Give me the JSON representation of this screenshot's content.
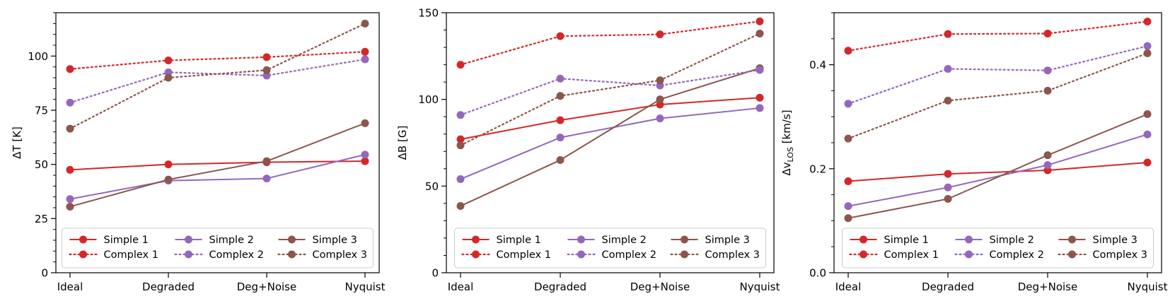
{
  "colors": {
    "simple1": "#d62728",
    "simple2": "#9467bd",
    "simple3": "#8c564b",
    "axis": "#000000",
    "background": "#ffffff"
  },
  "chart_data": [
    {
      "type": "line",
      "title": "",
      "xlabel": "",
      "ylabel": "ΔT [K]",
      "categories": [
        "Ideal",
        "Degraded",
        "Deg+Noise",
        "Nyquist"
      ],
      "ylim": [
        0,
        120
      ],
      "yticks": [
        0,
        25,
        50,
        75,
        100
      ],
      "yticklabels": [
        "0",
        "25",
        "50",
        "75",
        "100"
      ],
      "minor_step": 5,
      "legend_position": "lower-center",
      "series": [
        {
          "name": "Simple 1",
          "color": "#d62728",
          "style": "solid",
          "values": [
            47.5,
            50,
            51,
            51.5
          ]
        },
        {
          "name": "Simple 2",
          "color": "#9467bd",
          "style": "solid",
          "values": [
            34,
            42.5,
            43.5,
            54.5
          ]
        },
        {
          "name": "Simple 3",
          "color": "#8c564b",
          "style": "solid",
          "values": [
            30.5,
            43,
            51.5,
            69
          ]
        },
        {
          "name": "Complex 1",
          "color": "#d62728",
          "style": "dotted",
          "values": [
            94,
            98,
            99.5,
            102
          ]
        },
        {
          "name": "Complex 2",
          "color": "#9467bd",
          "style": "dotted",
          "values": [
            78.5,
            92.5,
            91,
            98.5
          ]
        },
        {
          "name": "Complex 3",
          "color": "#8c564b",
          "style": "dotted",
          "values": [
            66.5,
            90,
            93.5,
            115
          ]
        }
      ]
    },
    {
      "type": "line",
      "title": "",
      "xlabel": "",
      "ylabel": "ΔB [G]",
      "categories": [
        "Ideal",
        "Degraded",
        "Deg+Noise",
        "Nyquist"
      ],
      "ylim": [
        0,
        150
      ],
      "yticks": [
        0,
        50,
        100,
        150
      ],
      "yticklabels": [
        "0",
        "50",
        "100",
        "150"
      ],
      "minor_step": 10,
      "legend_position": "lower-center",
      "series": [
        {
          "name": "Simple 1",
          "color": "#d62728",
          "style": "solid",
          "values": [
            77,
            88,
            97,
            101
          ]
        },
        {
          "name": "Simple 2",
          "color": "#9467bd",
          "style": "solid",
          "values": [
            54,
            78,
            89,
            95
          ]
        },
        {
          "name": "Simple 3",
          "color": "#8c564b",
          "style": "solid",
          "values": [
            38.5,
            65,
            100,
            118
          ]
        },
        {
          "name": "Complex 1",
          "color": "#d62728",
          "style": "dotted",
          "values": [
            120,
            136.5,
            137.5,
            145
          ]
        },
        {
          "name": "Complex 2",
          "color": "#9467bd",
          "style": "dotted",
          "values": [
            91,
            112,
            108,
            117
          ]
        },
        {
          "name": "Complex 3",
          "color": "#8c564b",
          "style": "dotted",
          "values": [
            73.5,
            102,
            111,
            138
          ]
        }
      ]
    },
    {
      "type": "line",
      "title": "",
      "xlabel": "",
      "ylabel_main": "Δv",
      "ylabel_sub": "LOS",
      "ylabel_unit": " [km/s]",
      "categories": [
        "Ideal",
        "Degraded",
        "Deg+Noise",
        "Nyquist"
      ],
      "ylim": [
        0,
        0.5
      ],
      "yticks": [
        0,
        0.2,
        0.4
      ],
      "yticklabels": [
        "0.0",
        "0.2",
        "0.4"
      ],
      "minor_step": 0.05,
      "legend_position": "lower-center",
      "series": [
        {
          "name": "Simple 1",
          "color": "#d62728",
          "style": "solid",
          "values": [
            0.176,
            0.19,
            0.197,
            0.212
          ]
        },
        {
          "name": "Simple 2",
          "color": "#9467bd",
          "style": "solid",
          "values": [
            0.128,
            0.164,
            0.207,
            0.266
          ]
        },
        {
          "name": "Simple 3",
          "color": "#8c564b",
          "style": "solid",
          "values": [
            0.105,
            0.142,
            0.226,
            0.305
          ]
        },
        {
          "name": "Complex 1",
          "color": "#d62728",
          "style": "dotted",
          "values": [
            0.427,
            0.459,
            0.46,
            0.483
          ]
        },
        {
          "name": "Complex 2",
          "color": "#9467bd",
          "style": "dotted",
          "values": [
            0.325,
            0.392,
            0.389,
            0.436
          ]
        },
        {
          "name": "Complex 3",
          "color": "#8c564b",
          "style": "dotted",
          "values": [
            0.258,
            0.331,
            0.35,
            0.422
          ]
        }
      ]
    }
  ]
}
